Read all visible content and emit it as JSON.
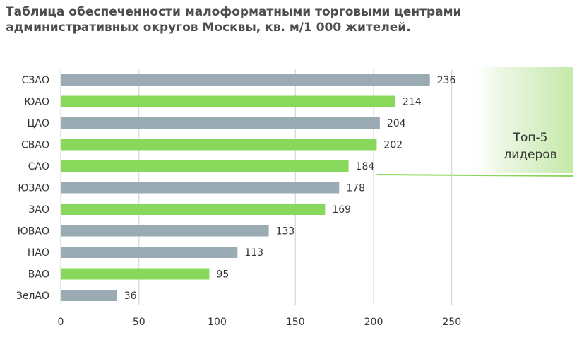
{
  "title": "Таблица обеспеченности малоформатными торговыми центрами\nадминистративных округов Москвы, кв. м/1 000 жителей.",
  "chart_data": {
    "type": "bar",
    "orientation": "horizontal",
    "categories": [
      "СЗАО",
      "ЮАО",
      "ЦАО",
      "СВАО",
      "САО",
      "ЮЗАО",
      "ЗАО",
      "ЮВАО",
      "НАО",
      "ВАО",
      "ЗелАО"
    ],
    "values": [
      236,
      214,
      204,
      202,
      184,
      178,
      169,
      133,
      113,
      95,
      36
    ],
    "bar_colors": [
      "#9aabb4",
      "#88d95b",
      "#9aabb4",
      "#88d95b",
      "#88d95b",
      "#9aabb4",
      "#88d95b",
      "#9aabb4",
      "#9aabb4",
      "#88d95b",
      "#9aabb4"
    ],
    "xlim": [
      0,
      300
    ],
    "xticks": [
      0,
      50,
      100,
      150,
      200,
      250
    ],
    "grid": true,
    "annotation": "Топ-5\nлидеров",
    "highlight_color": "#88d95b"
  }
}
